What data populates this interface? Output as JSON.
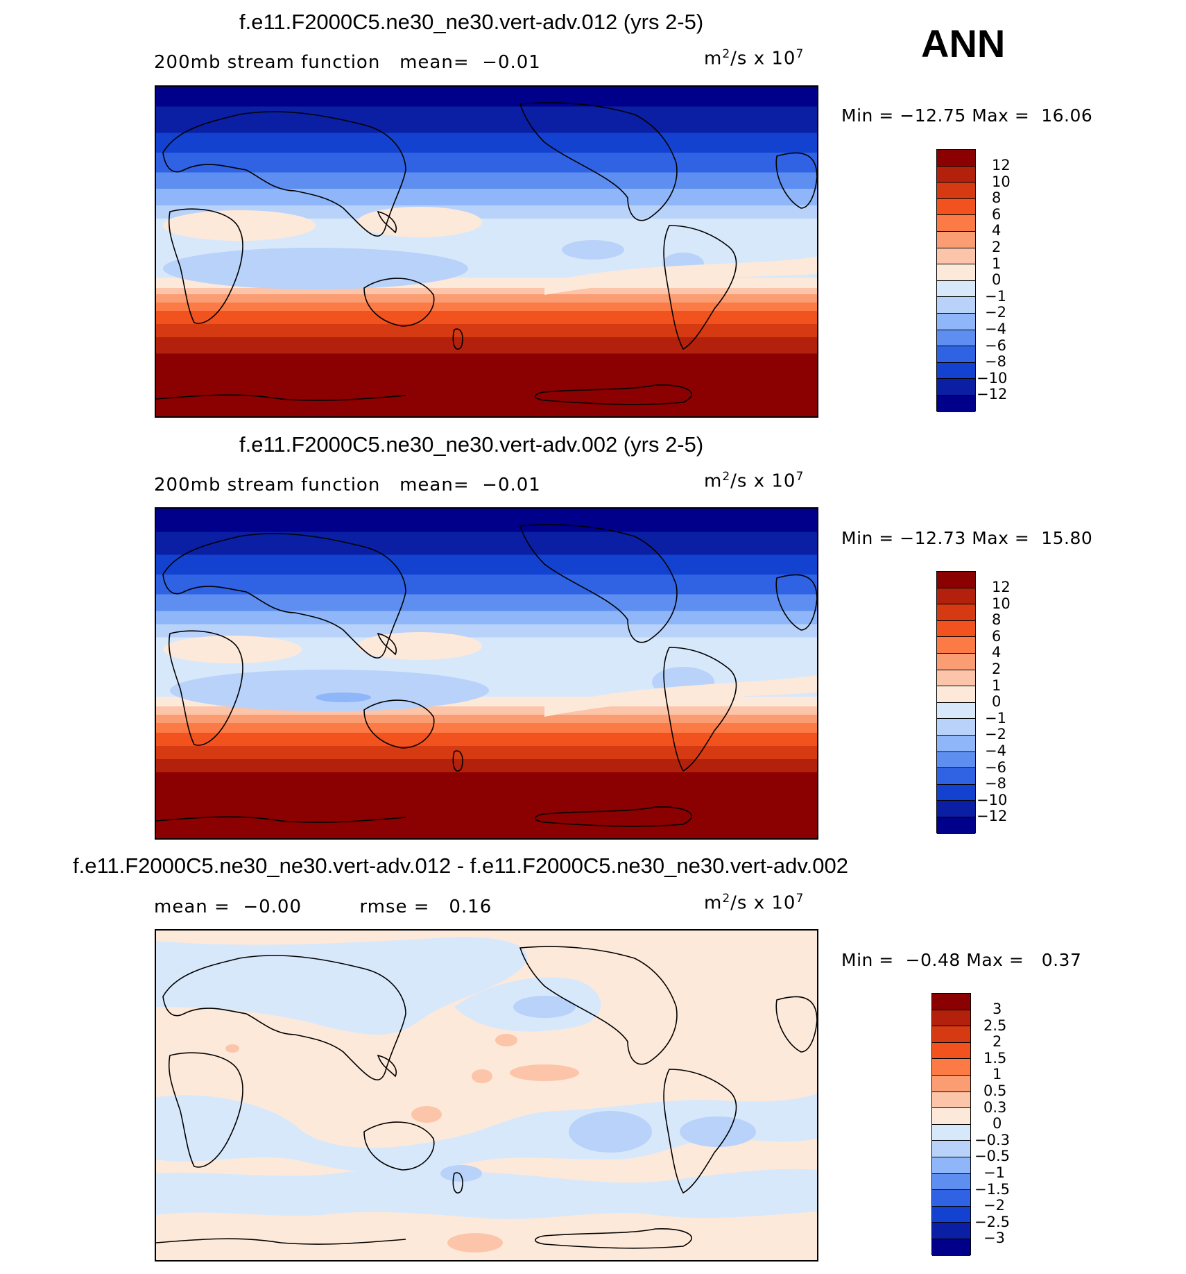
{
  "season": "ANN",
  "panels": [
    {
      "title": "f.e11.F2000C5.ne30_ne30.vert-adv.012 (yrs 2-5)",
      "subtitle": "200mb stream function",
      "mean_label": "mean=",
      "mean_value": "−0.01",
      "units_base": "m",
      "units_exp": "2",
      "units_mid": "/s x 10",
      "units_exp2": "7",
      "min_label": "Min =",
      "min_value": "−12.75",
      "max_label": "Max =",
      "max_value": "16.06",
      "colorbar_labels": [
        "12",
        "10",
        "8",
        "6",
        "4",
        "2",
        "1",
        "0",
        "−1",
        "−2",
        "−4",
        "−6",
        "−8",
        "−10",
        "−12"
      ],
      "colors": [
        "#8b0000",
        "#b3200b",
        "#d63a13",
        "#f2531e",
        "#fb7a45",
        "#fb9d73",
        "#fcc4a8",
        "#fde9da",
        "#d8e8fb",
        "#b8d2fa",
        "#8eb6f8",
        "#5e8ef0",
        "#2f63e4",
        "#1242cf",
        "#0a1fa3",
        "#00008b"
      ]
    },
    {
      "title": "f.e11.F2000C5.ne30_ne30.vert-adv.002 (yrs 2-5)",
      "subtitle": "200mb stream function",
      "mean_label": "mean=",
      "mean_value": "−0.01",
      "units_base": "m",
      "units_exp": "2",
      "units_mid": "/s x 10",
      "units_exp2": "7",
      "min_label": "Min =",
      "min_value": "−12.73",
      "max_label": "Max =",
      "max_value": "15.80",
      "colorbar_labels": [
        "12",
        "10",
        "8",
        "6",
        "4",
        "2",
        "1",
        "0",
        "−1",
        "−2",
        "−4",
        "−6",
        "−8",
        "−10",
        "−12"
      ],
      "colors": [
        "#8b0000",
        "#b3200b",
        "#d63a13",
        "#f2531e",
        "#fb7a45",
        "#fb9d73",
        "#fcc4a8",
        "#fde9da",
        "#d8e8fb",
        "#b8d2fa",
        "#8eb6f8",
        "#5e8ef0",
        "#2f63e4",
        "#1242cf",
        "#0a1fa3",
        "#00008b"
      ]
    },
    {
      "title": "f.e11.F2000C5.ne30_ne30.vert-adv.012 - f.e11.F2000C5.ne30_ne30.vert-adv.002",
      "mean_label": "mean =",
      "mean_value": "−0.00",
      "rmse_label": "rmse =",
      "rmse_value": "0.16",
      "units_base": "m",
      "units_exp": "2",
      "units_mid": "/s x 10",
      "units_exp2": "7",
      "min_label": "Min =",
      "min_value": "−0.48",
      "max_label": "Max =",
      "max_value": "0.37",
      "colorbar_labels": [
        "3",
        "2.5",
        "2",
        "1.5",
        "1",
        "0.5",
        "0.3",
        "0",
        "−0.3",
        "−0.5",
        "−1",
        "−1.5",
        "−2",
        "−2.5",
        "−3"
      ],
      "colors": [
        "#8b0000",
        "#b3200b",
        "#d63a13",
        "#f2531e",
        "#fb7a45",
        "#fb9d73",
        "#fcc4a8",
        "#fde9da",
        "#d8e8fb",
        "#b8d2fa",
        "#8eb6f8",
        "#5e8ef0",
        "#2f63e4",
        "#1242cf",
        "#0a1fa3",
        "#00008b"
      ]
    }
  ]
}
